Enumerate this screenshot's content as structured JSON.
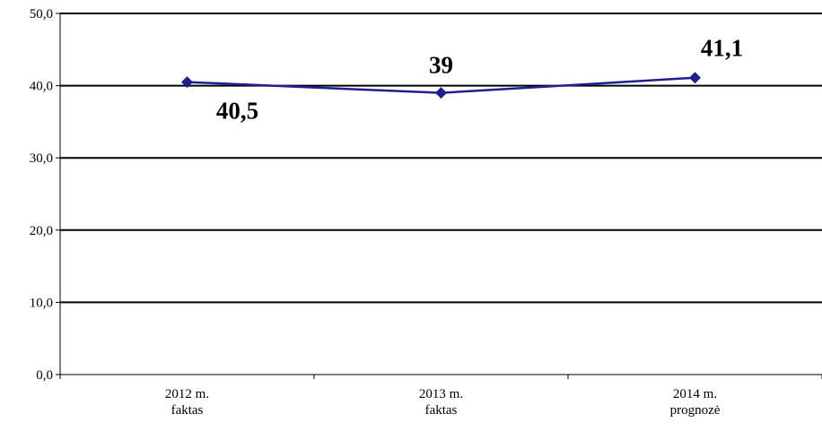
{
  "chart_data": {
    "type": "line",
    "categories": [
      [
        "2012 m.",
        "faktas"
      ],
      [
        "2013 m.",
        "faktas"
      ],
      [
        "2014 m.",
        "prognozė"
      ]
    ],
    "series": [
      {
        "values": [
          40.5,
          39,
          41.1
        ]
      }
    ],
    "data_labels": [
      "40,5",
      "39",
      "41,1"
    ],
    "y_ticks": [
      "0,0",
      "10,0",
      "20,0",
      "30,0",
      "40,0",
      "50,0"
    ],
    "ylim": [
      0,
      50
    ],
    "grid": true,
    "legend": "none",
    "colors": {
      "series": "#1f1f8f",
      "grid": "#000000",
      "axis": "#000000"
    }
  }
}
